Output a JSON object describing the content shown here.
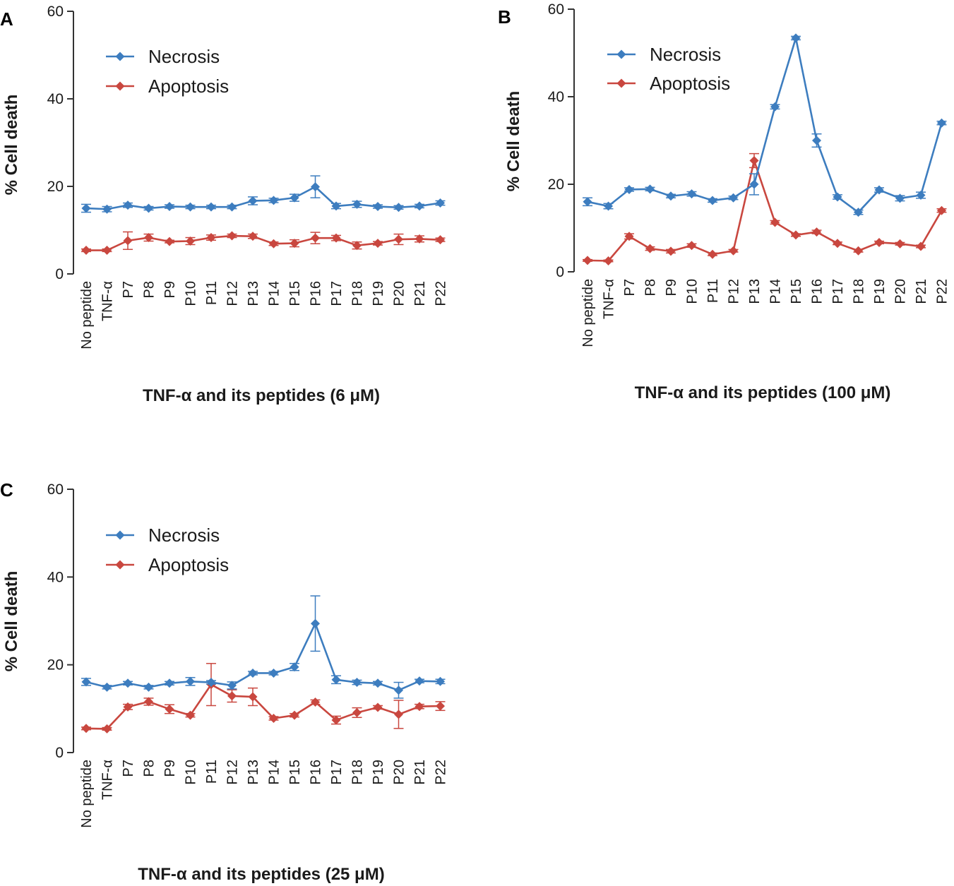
{
  "colors": {
    "necrosis": "#3d7dbf",
    "apoptosis": "#c9473f",
    "axis": "#333333"
  },
  "chart_data": [
    {
      "panel": "A",
      "type": "line",
      "xlabel": "TNF-α and its peptides (6 μM)",
      "ylabel": "% Cell death",
      "ylim": [
        0,
        60
      ],
      "yticks": [
        0,
        20,
        40,
        60
      ],
      "categories": [
        "No peptide",
        "TNF-α",
        "P7",
        "P8",
        "P9",
        "P10",
        "P11",
        "P12",
        "P13",
        "P14",
        "P15",
        "P16",
        "P17",
        "P18",
        "P19",
        "P20",
        "P21",
        "P22"
      ],
      "legend_position": "top-left",
      "series": [
        {
          "name": "Necrosis",
          "color": "#3d7dbf",
          "values": [
            15.0,
            14.8,
            15.7,
            15.0,
            15.4,
            15.3,
            15.3,
            15.3,
            16.7,
            16.8,
            17.4,
            19.9,
            15.5,
            15.9,
            15.4,
            15.2,
            15.5,
            16.2
          ],
          "errors": [
            0.9,
            0.6,
            0.5,
            0.4,
            0.4,
            0.4,
            0.4,
            0.4,
            0.9,
            0.5,
            0.8,
            2.5,
            0.6,
            0.7,
            0.4,
            0.4,
            0.4,
            0.5
          ]
        },
        {
          "name": "Apoptosis",
          "color": "#c9473f",
          "values": [
            5.4,
            5.4,
            7.6,
            8.3,
            7.4,
            7.5,
            8.3,
            8.7,
            8.6,
            6.9,
            7.0,
            8.2,
            8.2,
            6.5,
            7.0,
            7.9,
            8.0,
            7.8
          ],
          "errors": [
            0.3,
            0.3,
            2.0,
            0.8,
            0.3,
            0.8,
            0.6,
            0.4,
            0.5,
            0.4,
            0.8,
            1.3,
            0.6,
            0.8,
            0.4,
            1.2,
            0.7,
            0.4
          ]
        }
      ]
    },
    {
      "panel": "B",
      "type": "line",
      "xlabel": "TNF-α and its peptides (100 μM)",
      "ylabel": "% Cell death",
      "ylim": [
        0,
        60
      ],
      "yticks": [
        0,
        20,
        40,
        60
      ],
      "categories": [
        "No peptide",
        "TNF-α",
        "P7",
        "P8",
        "P9",
        "P10",
        "P11",
        "P12",
        "P13",
        "P14",
        "P15",
        "P16",
        "P17",
        "P18",
        "P19",
        "P20",
        "P21",
        "P22"
      ],
      "legend_position": "top-left",
      "series": [
        {
          "name": "Necrosis",
          "color": "#3d7dbf",
          "values": [
            16.0,
            15.0,
            18.8,
            18.9,
            17.3,
            17.8,
            16.3,
            16.9,
            20.0,
            37.7,
            53.4,
            30.0,
            17.1,
            13.6,
            18.7,
            16.8,
            17.5,
            34.0
          ],
          "errors": [
            0.9,
            0.6,
            0.4,
            0.4,
            0.4,
            0.5,
            0.4,
            0.4,
            2.4,
            0.5,
            0.4,
            1.5,
            0.5,
            0.5,
            0.5,
            0.6,
            0.7,
            0.4
          ]
        },
        {
          "name": "Apoptosis",
          "color": "#c9473f",
          "values": [
            2.6,
            2.5,
            8.1,
            5.3,
            4.7,
            6.0,
            4.0,
            4.8,
            25.4,
            11.3,
            8.4,
            9.1,
            6.5,
            4.8,
            6.7,
            6.4,
            5.8,
            14.0
          ],
          "errors": [
            0.2,
            0.2,
            0.6,
            0.4,
            0.4,
            0.4,
            0.3,
            0.3,
            1.6,
            0.4,
            0.3,
            0.4,
            0.3,
            0.3,
            0.3,
            0.3,
            0.3,
            0.4
          ]
        }
      ]
    },
    {
      "panel": "C",
      "type": "line",
      "xlabel": "TNF-α and its peptides (25 μM)",
      "ylabel": "% Cell death",
      "ylim": [
        0,
        60
      ],
      "yticks": [
        0,
        20,
        40,
        60
      ],
      "categories": [
        "No peptide",
        "TNF-α",
        "P7",
        "P8",
        "P9",
        "P10",
        "P11",
        "P12",
        "P13",
        "P14",
        "P15",
        "P16",
        "P17",
        "P18",
        "P19",
        "P20",
        "P21",
        "P22"
      ],
      "legend_position": "top-left",
      "series": [
        {
          "name": "Necrosis",
          "color": "#3d7dbf",
          "values": [
            16.1,
            14.9,
            15.8,
            14.9,
            15.8,
            16.2,
            16.0,
            15.3,
            18.1,
            18.1,
            19.5,
            29.4,
            16.6,
            16.0,
            15.8,
            14.2,
            16.3,
            16.2
          ],
          "errors": [
            0.8,
            0.4,
            0.4,
            0.4,
            0.4,
            0.9,
            0.4,
            0.8,
            0.4,
            0.4,
            0.8,
            6.3,
            0.9,
            0.5,
            0.4,
            1.8,
            0.4,
            0.5
          ]
        },
        {
          "name": "Apoptosis",
          "color": "#c9473f",
          "values": [
            5.5,
            5.4,
            10.4,
            11.6,
            9.9,
            8.5,
            15.5,
            12.9,
            12.7,
            7.8,
            8.5,
            11.5,
            7.4,
            9.1,
            10.3,
            8.7,
            10.5,
            10.6
          ],
          "errors": [
            0.3,
            0.3,
            0.6,
            0.8,
            1.0,
            0.4,
            4.8,
            1.4,
            2.0,
            0.4,
            0.4,
            0.5,
            0.9,
            1.1,
            0.4,
            3.2,
            0.5,
            1.0
          ]
        }
      ]
    }
  ]
}
